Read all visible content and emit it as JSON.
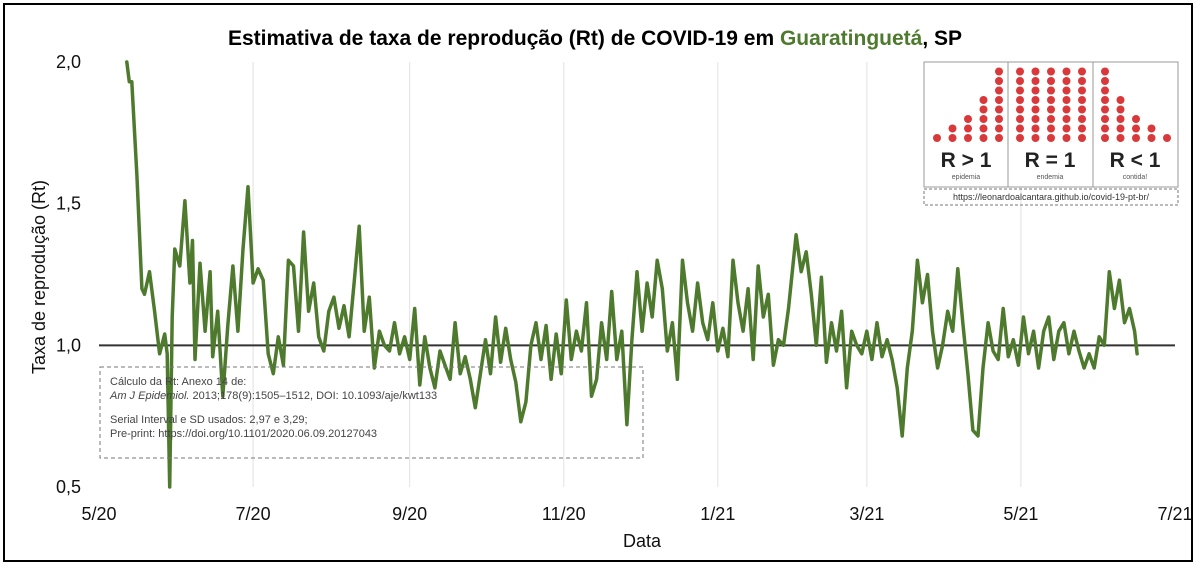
{
  "chart_data": {
    "type": "line",
    "title": {
      "prefix": "Estimativa de taxa de reprodução (Rt) de COVID-19 em ",
      "city": "Guaratinguetá",
      "suffix": ", SP"
    },
    "xlabel": "Data",
    "ylabel": "Taxa de reprodução (Rt)",
    "x_ticks": [
      "5/20",
      "7/20",
      "9/20",
      "11/20",
      "1/21",
      "3/21",
      "5/21",
      "7/21"
    ],
    "x_range": [
      "2020-05-01",
      "2021-07-01"
    ],
    "ylim": [
      0.5,
      2.0
    ],
    "y_ticks": [
      {
        "value": 0.5,
        "label": "0,5"
      },
      {
        "value": 1.0,
        "label": "1,0"
      },
      {
        "value": 1.5,
        "label": "1,5"
      },
      {
        "value": 2.0,
        "label": "2,0"
      }
    ],
    "reference_line": 1.0,
    "grid": "vertical",
    "colors": {
      "line": "#4e7a2e",
      "faded": "#a9c49a",
      "reference": "#333333",
      "title_city": "#4e7a2e",
      "dots": "#d9393b"
    },
    "series": [
      {
        "points": [
          [
            "2020-05-12",
            2.0
          ],
          [
            "2020-05-13",
            1.93
          ],
          [
            "2020-05-14",
            1.93
          ],
          [
            "2020-05-16",
            1.6
          ],
          [
            "2020-05-18",
            1.2
          ],
          [
            "2020-05-19",
            1.18
          ],
          [
            "2020-05-21",
            1.26
          ],
          [
            "2020-05-23",
            1.12
          ],
          [
            "2020-05-25",
            0.97
          ],
          [
            "2020-05-27",
            1.04
          ],
          [
            "2020-05-28",
            0.97
          ],
          [
            "2020-05-29",
            0.5
          ],
          [
            "2020-05-30",
            1.1
          ],
          [
            "2020-05-31",
            1.34
          ],
          [
            "2020-06-02",
            1.28
          ],
          [
            "2020-06-04",
            1.51
          ],
          [
            "2020-06-06",
            1.22
          ],
          [
            "2020-06-07",
            1.37
          ],
          [
            "2020-06-08",
            0.95
          ],
          [
            "2020-06-10",
            1.29
          ],
          [
            "2020-06-12",
            1.05
          ],
          [
            "2020-06-14",
            1.26
          ],
          [
            "2020-06-15",
            0.96
          ],
          [
            "2020-06-17",
            1.12
          ],
          [
            "2020-06-19",
            0.82
          ],
          [
            "2020-06-21",
            1.07
          ],
          [
            "2020-06-23",
            1.28
          ],
          [
            "2020-06-25",
            1.05
          ],
          [
            "2020-06-27",
            1.34
          ],
          [
            "2020-06-29",
            1.56
          ],
          [
            "2020-07-01",
            1.22
          ],
          [
            "2020-07-03",
            1.27
          ],
          [
            "2020-07-05",
            1.23
          ],
          [
            "2020-07-07",
            0.97
          ],
          [
            "2020-07-09",
            0.9
          ],
          [
            "2020-07-11",
            1.03
          ],
          [
            "2020-07-13",
            0.93
          ],
          [
            "2020-07-15",
            1.3
          ],
          [
            "2020-07-17",
            1.28
          ],
          [
            "2020-07-19",
            1.05
          ],
          [
            "2020-07-21",
            1.4
          ],
          [
            "2020-07-23",
            1.12
          ],
          [
            "2020-07-25",
            1.22
          ],
          [
            "2020-07-27",
            1.03
          ],
          [
            "2020-07-29",
            0.98
          ],
          [
            "2020-07-31",
            1.12
          ],
          [
            "2020-08-02",
            1.17
          ],
          [
            "2020-08-04",
            1.06
          ],
          [
            "2020-08-06",
            1.14
          ],
          [
            "2020-08-08",
            1.03
          ],
          [
            "2020-08-10",
            1.22
          ],
          [
            "2020-08-12",
            1.42
          ],
          [
            "2020-08-14",
            1.05
          ],
          [
            "2020-08-16",
            1.17
          ],
          [
            "2020-08-18",
            0.92
          ],
          [
            "2020-08-20",
            1.05
          ],
          [
            "2020-08-22",
            1.0
          ],
          [
            "2020-08-24",
            0.98
          ],
          [
            "2020-08-26",
            1.08
          ],
          [
            "2020-08-28",
            0.97
          ],
          [
            "2020-08-30",
            1.03
          ],
          [
            "2020-09-01",
            0.95
          ],
          [
            "2020-09-03",
            1.13
          ],
          [
            "2020-09-05",
            0.86
          ],
          [
            "2020-09-07",
            1.03
          ],
          [
            "2020-09-09",
            0.92
          ],
          [
            "2020-09-11",
            0.85
          ],
          [
            "2020-09-13",
            0.98
          ],
          [
            "2020-09-15",
            0.93
          ],
          [
            "2020-09-17",
            0.88
          ],
          [
            "2020-09-19",
            1.08
          ],
          [
            "2020-09-21",
            0.9
          ],
          [
            "2020-09-23",
            0.96
          ],
          [
            "2020-09-25",
            0.88
          ],
          [
            "2020-09-27",
            0.78
          ],
          [
            "2020-09-29",
            0.9
          ],
          [
            "2020-10-01",
            1.02
          ],
          [
            "2020-10-03",
            0.9
          ],
          [
            "2020-10-05",
            1.1
          ],
          [
            "2020-10-07",
            0.94
          ],
          [
            "2020-10-09",
            1.06
          ],
          [
            "2020-10-11",
            0.95
          ],
          [
            "2020-10-13",
            0.87
          ],
          [
            "2020-10-15",
            0.73
          ],
          [
            "2020-10-17",
            0.8
          ],
          [
            "2020-10-19",
            1.0
          ],
          [
            "2020-10-21",
            1.08
          ],
          [
            "2020-10-23",
            0.95
          ],
          [
            "2020-10-25",
            1.07
          ],
          [
            "2020-10-27",
            0.88
          ],
          [
            "2020-10-29",
            1.04
          ],
          [
            "2020-10-31",
            0.9
          ],
          [
            "2020-11-02",
            1.16
          ],
          [
            "2020-11-04",
            0.95
          ],
          [
            "2020-11-06",
            1.05
          ],
          [
            "2020-11-08",
            0.98
          ],
          [
            "2020-11-10",
            1.15
          ],
          [
            "2020-11-12",
            0.82
          ],
          [
            "2020-11-14",
            0.88
          ],
          [
            "2020-11-16",
            1.08
          ],
          [
            "2020-11-18",
            0.95
          ],
          [
            "2020-11-20",
            1.19
          ],
          [
            "2020-11-22",
            0.95
          ],
          [
            "2020-11-24",
            1.05
          ],
          [
            "2020-11-26",
            0.72
          ],
          [
            "2020-11-28",
            1.02
          ],
          [
            "2020-11-30",
            1.26
          ],
          [
            "2020-12-02",
            1.05
          ],
          [
            "2020-12-04",
            1.22
          ],
          [
            "2020-12-06",
            1.1
          ],
          [
            "2020-12-08",
            1.3
          ],
          [
            "2020-12-10",
            1.2
          ],
          [
            "2020-12-12",
            0.98
          ],
          [
            "2020-12-14",
            1.08
          ],
          [
            "2020-12-16",
            0.88
          ],
          [
            "2020-12-18",
            1.3
          ],
          [
            "2020-12-20",
            1.15
          ],
          [
            "2020-12-22",
            1.05
          ],
          [
            "2020-12-24",
            1.22
          ],
          [
            "2020-12-26",
            1.08
          ],
          [
            "2020-12-28",
            1.02
          ],
          [
            "2020-12-30",
            1.15
          ],
          [
            "2021-01-01",
            0.98
          ],
          [
            "2021-01-03",
            1.06
          ],
          [
            "2021-01-05",
            0.96
          ],
          [
            "2021-01-07",
            1.3
          ],
          [
            "2021-01-09",
            1.15
          ],
          [
            "2021-01-11",
            1.05
          ],
          [
            "2021-01-13",
            1.2
          ],
          [
            "2021-01-15",
            0.95
          ],
          [
            "2021-01-17",
            1.28
          ],
          [
            "2021-01-19",
            1.1
          ],
          [
            "2021-01-21",
            1.18
          ],
          [
            "2021-01-23",
            0.93
          ],
          [
            "2021-01-25",
            1.02
          ],
          [
            "2021-01-27",
            1.0
          ],
          [
            "2021-01-29",
            1.13
          ],
          [
            "2021-02-01",
            1.39
          ],
          [
            "2021-02-03",
            1.26
          ],
          [
            "2021-02-05",
            1.33
          ],
          [
            "2021-02-07",
            1.18
          ],
          [
            "2021-02-09",
            1.0
          ],
          [
            "2021-02-11",
            1.24
          ],
          [
            "2021-02-13",
            0.94
          ],
          [
            "2021-02-15",
            1.08
          ],
          [
            "2021-02-17",
            0.98
          ],
          [
            "2021-02-19",
            1.12
          ],
          [
            "2021-02-21",
            0.85
          ],
          [
            "2021-02-23",
            1.05
          ],
          [
            "2021-02-25",
            1.0
          ],
          [
            "2021-02-27",
            0.97
          ],
          [
            "2021-03-01",
            1.05
          ],
          [
            "2021-03-03",
            0.95
          ],
          [
            "2021-03-05",
            1.08
          ],
          [
            "2021-03-07",
            0.96
          ],
          [
            "2021-03-09",
            1.02
          ],
          [
            "2021-03-11",
            0.95
          ],
          [
            "2021-03-13",
            0.85
          ],
          [
            "2021-03-15",
            0.68
          ],
          [
            "2021-03-17",
            0.92
          ],
          [
            "2021-03-19",
            1.05
          ],
          [
            "2021-03-21",
            1.3
          ],
          [
            "2021-03-23",
            1.15
          ],
          [
            "2021-03-25",
            1.25
          ],
          [
            "2021-03-27",
            1.05
          ],
          [
            "2021-03-29",
            0.92
          ],
          [
            "2021-03-31",
            1.0
          ],
          [
            "2021-04-02",
            1.12
          ],
          [
            "2021-04-04",
            1.05
          ],
          [
            "2021-04-06",
            1.27
          ],
          [
            "2021-04-08",
            1.08
          ],
          [
            "2021-04-10",
            0.9
          ],
          [
            "2021-04-12",
            0.7
          ],
          [
            "2021-04-14",
            0.68
          ],
          [
            "2021-04-16",
            0.92
          ],
          [
            "2021-04-18",
            1.08
          ],
          [
            "2021-04-20",
            0.98
          ],
          [
            "2021-04-22",
            0.95
          ],
          [
            "2021-04-24",
            1.13
          ],
          [
            "2021-04-26",
            0.96
          ],
          [
            "2021-04-28",
            1.02
          ],
          [
            "2021-04-30",
            0.93
          ],
          [
            "2021-05-02",
            1.1
          ],
          [
            "2021-05-04",
            0.97
          ],
          [
            "2021-05-06",
            1.05
          ],
          [
            "2021-05-08",
            0.92
          ],
          [
            "2021-05-10",
            1.05
          ],
          [
            "2021-05-12",
            1.1
          ],
          [
            "2021-05-14",
            0.95
          ],
          [
            "2021-05-16",
            1.05
          ],
          [
            "2021-05-18",
            1.08
          ],
          [
            "2021-05-20",
            0.97
          ],
          [
            "2021-05-22",
            1.05
          ],
          [
            "2021-05-24",
            0.98
          ],
          [
            "2021-05-26",
            0.92
          ],
          [
            "2021-05-28",
            0.97
          ],
          [
            "2021-05-30",
            0.92
          ],
          [
            "2021-06-01",
            1.03
          ],
          [
            "2021-06-03",
            1.0
          ],
          [
            "2021-06-05",
            1.26
          ],
          [
            "2021-06-07",
            1.13
          ],
          [
            "2021-06-09",
            1.23
          ],
          [
            "2021-06-11",
            1.08
          ],
          [
            "2021-06-13",
            1.13
          ],
          [
            "2021-06-15",
            1.05
          ],
          [
            "2021-06-16",
            0.97
          ]
        ]
      }
    ],
    "note_box": {
      "line1": "Cálculo da Rt: Anexo 14 de:",
      "line2_journal": "Am J Epidemiol.",
      "line2_rest": " 2013;178(9):1505–1512, DOI: 10.1093/aje/kwt133",
      "line3": "Serial Interval e SD usados: 2,97 e 3,29;",
      "line4": "Pre-print: https://doi.org/10.1101/2020.06.09.20127043"
    },
    "legend_image": {
      "labels": [
        {
          "big": "R > 1",
          "small": "epidemia"
        },
        {
          "big": "R = 1",
          "small": "endemia"
        },
        {
          "big": "R < 1",
          "small": "contida!"
        }
      ],
      "url": "https://leonardoalcantara.github.io/covid-19-pt-br/"
    }
  }
}
